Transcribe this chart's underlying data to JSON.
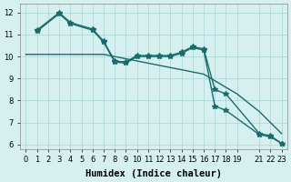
{
  "bg_color": "#d6f0f0",
  "grid_color": "#b0d8d8",
  "line_color": "#1a6b6b",
  "line_width": 1.0,
  "marker": "*",
  "marker_size": 4,
  "xlabel": "Humidex (Indice chaleur)",
  "xlabel_fontsize": 7.5,
  "tick_fontsize": 6,
  "xlim": [
    -0.5,
    23.5
  ],
  "ylim": [
    5.8,
    12.4
  ],
  "yticks": [
    6,
    7,
    8,
    9,
    10,
    11,
    12
  ],
  "xticks": [
    0,
    1,
    2,
    3,
    4,
    5,
    6,
    7,
    8,
    9,
    10,
    11,
    12,
    13,
    14,
    15,
    16,
    17,
    18,
    19,
    21,
    22,
    23
  ],
  "xtick_labels": [
    "0",
    "1",
    "2",
    "3",
    "4",
    "5",
    "6",
    "7",
    "8",
    "9",
    "10",
    "11",
    "12",
    "13",
    "14",
    "15",
    "16",
    "17",
    "18",
    "19",
    "21",
    "22",
    "23"
  ],
  "line1_x": [
    0,
    1,
    2,
    3,
    4,
    5,
    6,
    7,
    8,
    9,
    10,
    11,
    12,
    13,
    14,
    15,
    16,
    17,
    18,
    19,
    21,
    22,
    23
  ],
  "line1_y": [
    10.1,
    10.1,
    10.1,
    10.1,
    10.1,
    10.1,
    10.1,
    10.1,
    10.0,
    9.9,
    9.8,
    9.7,
    9.6,
    9.5,
    9.4,
    9.3,
    9.2,
    8.9,
    8.6,
    8.3,
    7.5,
    7.0,
    6.5
  ],
  "line2_x": [
    1,
    3,
    4,
    6,
    7,
    8,
    9,
    10,
    11,
    12,
    13,
    14,
    15,
    16,
    17,
    18,
    21,
    22,
    23
  ],
  "line2_y": [
    11.2,
    12.0,
    11.55,
    11.25,
    10.7,
    9.8,
    9.75,
    10.05,
    10.05,
    10.05,
    10.05,
    10.2,
    10.45,
    10.35,
    8.5,
    8.3,
    6.5,
    6.4,
    6.05
  ],
  "line3_x": [
    1,
    3,
    4,
    6,
    7,
    8,
    9,
    10,
    11,
    12,
    13,
    14,
    15,
    16,
    17,
    18,
    21,
    22,
    23
  ],
  "line3_y": [
    11.15,
    11.95,
    11.5,
    11.2,
    10.65,
    9.75,
    9.7,
    10.0,
    10.0,
    10.0,
    10.0,
    10.15,
    10.4,
    10.3,
    7.75,
    7.55,
    6.45,
    6.35,
    6.05
  ]
}
